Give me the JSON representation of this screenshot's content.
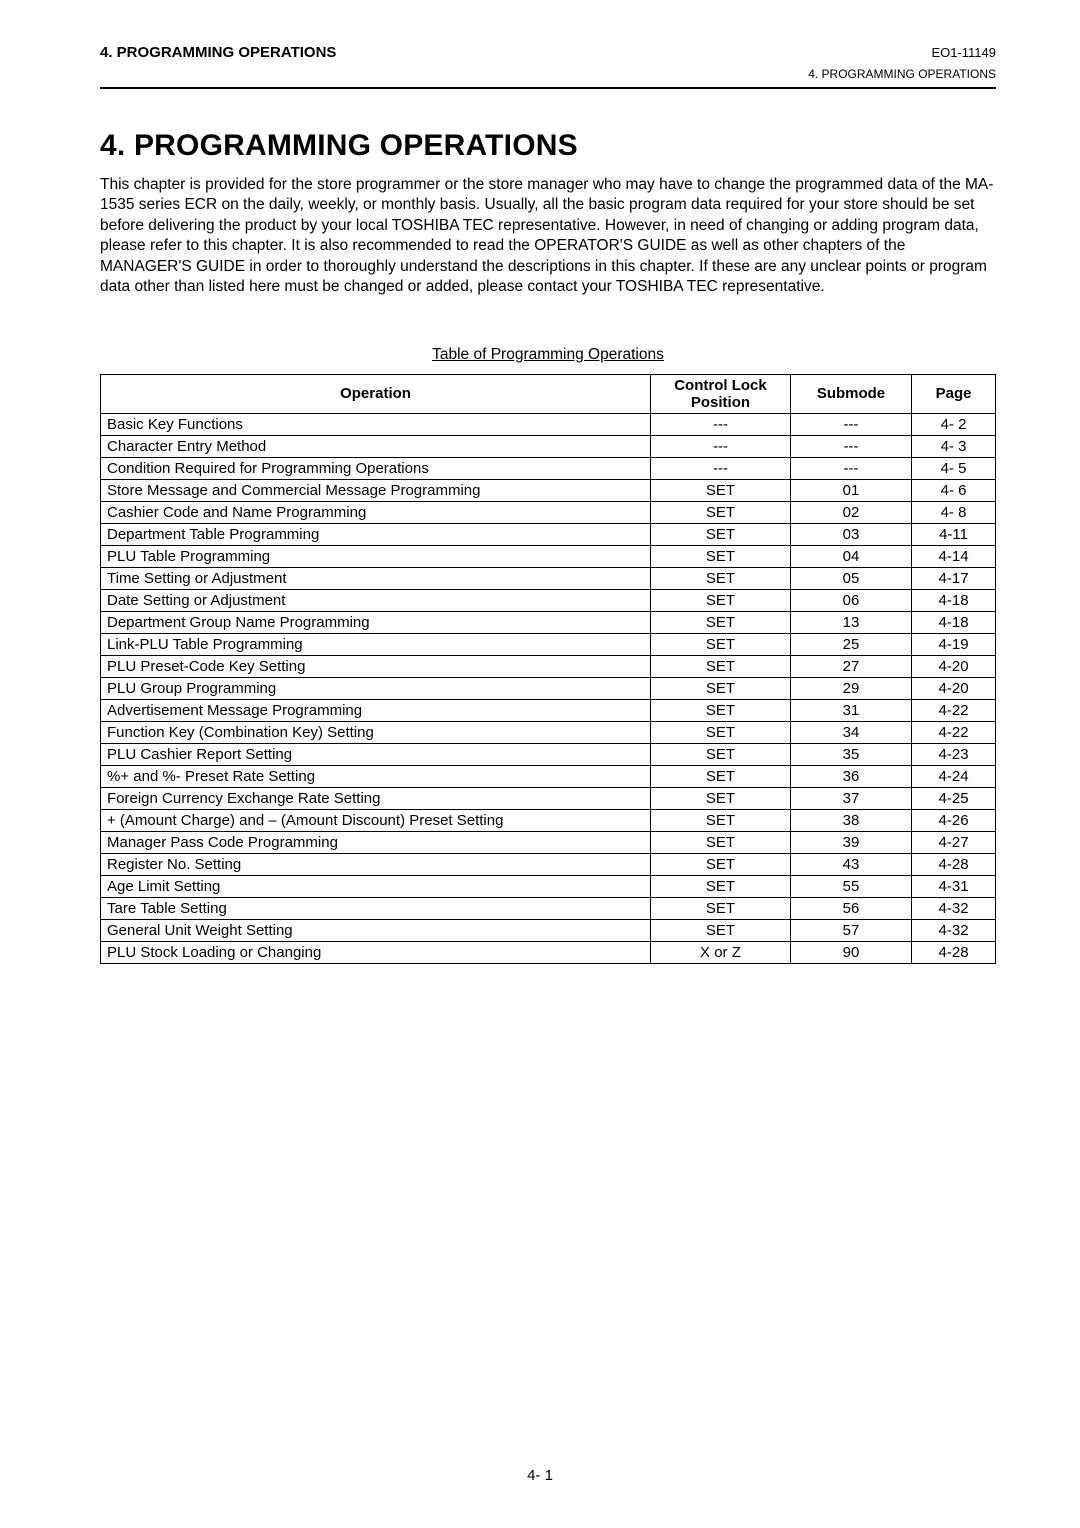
{
  "header": {
    "left": "4. PROGRAMMING OPERATIONS",
    "right": "EO1-11149",
    "sub_right": "4. PROGRAMMING OPERATIONS"
  },
  "chapter_title": "4. PROGRAMMING OPERATIONS",
  "intro_text": "This chapter is provided for the store programmer or the store manager who may have to change the programmed data of the MA-1535 series ECR on the daily, weekly, or monthly basis.  Usually, all the basic program data required for your store should be set before delivering the product by your local TOSHIBA TEC representative.  However, in need of changing or adding program data, please refer to this chapter.  It is also recommended to read the OPERATOR'S GUIDE as well as other chapters of the MANAGER'S GUIDE in order to thoroughly understand the descriptions in this chapter.  If these are any unclear points or program data other than listed here must be changed or added, please contact your TOSHIBA TEC representative.",
  "table_caption": "Table of Programming Operations",
  "table": {
    "columns": {
      "operation": "Operation",
      "lock_line1": "Control Lock",
      "lock_line2": "Position",
      "submode": "Submode",
      "page": "Page"
    },
    "rows": [
      {
        "operation": "Basic Key Functions",
        "lock": "---",
        "submode": "---",
        "page": "4- 2"
      },
      {
        "operation": "Character Entry Method",
        "lock": "---",
        "submode": "---",
        "page": "4- 3"
      },
      {
        "operation": "Condition Required for Programming Operations",
        "lock": "---",
        "submode": "---",
        "page": "4- 5"
      },
      {
        "operation": "Store Message and Commercial Message Programming",
        "lock": "SET",
        "submode": "01",
        "page": "4- 6"
      },
      {
        "operation": "Cashier Code and Name Programming",
        "lock": "SET",
        "submode": "02",
        "page": "4- 8"
      },
      {
        "operation": "Department Table Programming",
        "lock": "SET",
        "submode": "03",
        "page": "4-11"
      },
      {
        "operation": "PLU Table Programming",
        "lock": "SET",
        "submode": "04",
        "page": "4-14"
      },
      {
        "operation": "Time Setting or Adjustment",
        "lock": "SET",
        "submode": "05",
        "page": "4-17"
      },
      {
        "operation": "Date Setting or Adjustment",
        "lock": "SET",
        "submode": "06",
        "page": "4-18"
      },
      {
        "operation": "Department Group Name Programming",
        "lock": "SET",
        "submode": "13",
        "page": "4-18"
      },
      {
        "operation": "Link-PLU Table Programming",
        "lock": "SET",
        "submode": "25",
        "page": "4-19"
      },
      {
        "operation": "PLU Preset-Code Key Setting",
        "lock": "SET",
        "submode": "27",
        "page": "4-20"
      },
      {
        "operation": "PLU Group Programming",
        "lock": "SET",
        "submode": "29",
        "page": "4-20"
      },
      {
        "operation": "Advertisement Message Programming",
        "lock": "SET",
        "submode": "31",
        "page": "4-22"
      },
      {
        "operation": "Function Key (Combination Key) Setting",
        "lock": "SET",
        "submode": "34",
        "page": "4-22"
      },
      {
        "operation": "PLU Cashier Report Setting",
        "lock": "SET",
        "submode": "35",
        "page": "4-23"
      },
      {
        "operation": "%+ and %- Preset Rate Setting",
        "lock": "SET",
        "submode": "36",
        "page": "4-24"
      },
      {
        "operation": "Foreign Currency Exchange Rate Setting",
        "lock": "SET",
        "submode": "37",
        "page": "4-25"
      },
      {
        "operation": "+ (Amount Charge) and – (Amount Discount) Preset Setting",
        "lock": "SET",
        "submode": "38",
        "page": "4-26"
      },
      {
        "operation": "Manager Pass Code Programming",
        "lock": "SET",
        "submode": "39",
        "page": "4-27"
      },
      {
        "operation": "Register No. Setting",
        "lock": "SET",
        "submode": "43",
        "page": "4-28"
      },
      {
        "operation": "Age Limit Setting",
        "lock": "SET",
        "submode": "55",
        "page": "4-31"
      },
      {
        "operation": "Tare Table Setting",
        "lock": "SET",
        "submode": "56",
        "page": "4-32"
      },
      {
        "operation": "General Unit Weight Setting",
        "lock": "SET",
        "submode": "57",
        "page": "4-32"
      },
      {
        "operation": "PLU Stock Loading or Changing",
        "lock": "X or Z",
        "submode": "90",
        "page": "4-28"
      }
    ]
  },
  "footer_page": "4- 1"
}
